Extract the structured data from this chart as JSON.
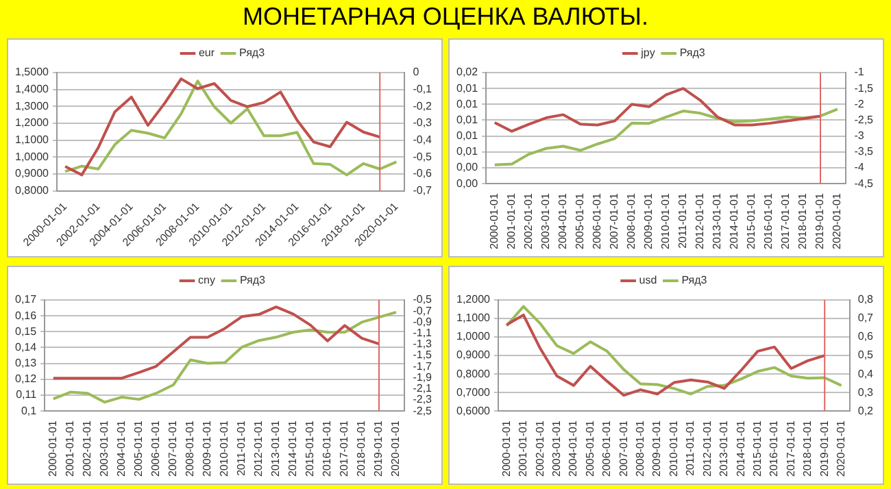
{
  "chart_data": [
    {
      "type": "line",
      "title": "МОНЕТАРНАЯ ОЦЕНКА ВАЛЮТЫ.",
      "legend": "top",
      "grid": "y",
      "marker": "none",
      "line_style": "solid",
      "x": [
        "2000-01-01",
        "2001-01-01",
        "2002-01-01",
        "2003-01-01",
        "2004-01-01",
        "2005-01-01",
        "2006-01-01",
        "2007-01-01",
        "2008-01-01",
        "2009-01-01",
        "2010-01-01",
        "2011-01-01",
        "2012-01-01",
        "2013-01-01",
        "2014-01-01",
        "2015-01-01",
        "2016-01-01",
        "2017-01-01",
        "2018-01-01",
        "2019-01-01",
        "2020-01-01"
      ],
      "xlim": [
        "1999-07-01",
        "2020-07-01"
      ],
      "xticks": [
        "2000-01-01",
        "2002-01-01",
        "2004-01-01",
        "2006-01-01",
        "2008-01-01",
        "2010-01-01",
        "2012-01-01",
        "2014-01-01",
        "2016-01-01",
        "2018-01-01",
        "2020-01-01"
      ],
      "ylim": [
        0.8,
        1.5
      ],
      "yticks": [
        {
          "value": 0.8,
          "label": "0,8000"
        },
        {
          "value": 0.9,
          "label": "0,9000"
        },
        {
          "value": 1.0,
          "label": "1,0000"
        },
        {
          "value": 1.1,
          "label": "1,1000"
        },
        {
          "value": 1.2,
          "label": "1,2000"
        },
        {
          "value": 1.3,
          "label": "1,3000"
        },
        {
          "value": 1.4,
          "label": "1,4000"
        },
        {
          "value": 1.5,
          "label": "1,5000"
        }
      ],
      "y2lim": [
        -0.7,
        0
      ],
      "y2ticks": [
        {
          "value": -0.7,
          "label": "-0,7"
        },
        {
          "value": -0.6,
          "label": "-0,6"
        },
        {
          "value": -0.5,
          "label": "-0,5"
        },
        {
          "value": -0.4,
          "label": "-0,4"
        },
        {
          "value": -0.3,
          "label": "-0,3"
        },
        {
          "value": -0.2,
          "label": "-0,2"
        },
        {
          "value": -0.1,
          "label": "-0,1"
        },
        0
      ],
      "ref_lines": [
        {
          "axis": "x",
          "value": "2019-01-01",
          "color": "#e06666"
        }
      ],
      "series": [
        {
          "name": "eur",
          "color": "#c0504d",
          "values": [
            0.944,
            0.894,
            1.056,
            1.268,
            1.355,
            1.188,
            1.318,
            1.463,
            1.405,
            1.435,
            1.335,
            1.298,
            1.323,
            1.385,
            1.218,
            1.089,
            1.061,
            1.206,
            1.148,
            1.118,
            null
          ]
        },
        {
          "name": "Ряд3",
          "color": "#9bbb59",
          "axis": "y2",
          "values": [
            -0.586,
            -0.554,
            -0.571,
            -0.426,
            -0.342,
            -0.359,
            -0.387,
            -0.244,
            -0.05,
            -0.202,
            -0.299,
            -0.214,
            -0.374,
            -0.374,
            -0.354,
            -0.539,
            -0.544,
            -0.606,
            -0.539,
            -0.571,
            -0.529
          ]
        }
      ]
    },
    {
      "type": "line",
      "legend": "top",
      "grid": "y",
      "marker": "none",
      "line_style": "solid",
      "x": [
        "2000-01-01",
        "2001-01-01",
        "2002-01-01",
        "2003-01-01",
        "2004-01-01",
        "2005-01-01",
        "2006-01-01",
        "2007-01-01",
        "2008-01-01",
        "2009-01-01",
        "2010-01-01",
        "2011-01-01",
        "2012-01-01",
        "2013-01-01",
        "2014-01-01",
        "2015-01-01",
        "2016-01-01",
        "2017-01-01",
        "2018-01-01",
        "2019-01-01",
        "2020-01-01"
      ],
      "xlim": [
        "1999-07-01",
        "2020-07-01"
      ],
      "xticks": [
        "2000-01-01",
        "2001-01-01",
        "2002-01-01",
        "2003-01-01",
        "2004-01-01",
        "2005-01-01",
        "2006-01-01",
        "2007-01-01",
        "2008-01-01",
        "2009-01-01",
        "2010-01-01",
        "2011-01-01",
        "2012-01-01",
        "2013-01-01",
        "2014-01-01",
        "2015-01-01",
        "2016-01-01",
        "2017-01-01",
        "2018-01-01",
        "2019-01-01",
        "2020-01-01"
      ],
      "ylim": [
        0.002,
        0.016
      ],
      "yticks": [
        {
          "value": 0.002,
          "label": "0,00"
        },
        {
          "value": 0.004,
          "label": "0,00"
        },
        {
          "value": 0.006,
          "label": "0,01"
        },
        {
          "value": 0.008,
          "label": "0,01"
        },
        {
          "value": 0.01,
          "label": "0,01"
        },
        {
          "value": 0.012,
          "label": "0,01"
        },
        {
          "value": 0.014,
          "label": "0,01"
        },
        {
          "value": 0.016,
          "label": "0,02"
        }
      ],
      "y2lim": [
        -4.5,
        -1
      ],
      "y2ticks": [
        {
          "value": -4.5,
          "label": "-4,5"
        },
        -4,
        {
          "value": -3.5,
          "label": "-3,5"
        },
        -3,
        {
          "value": -2.5,
          "label": "-2,5"
        },
        -2,
        {
          "value": -1.5,
          "label": "-1,5"
        },
        -1
      ],
      "ref_lines": [
        {
          "axis": "x",
          "value": "2019-01-01",
          "color": "#e06666"
        }
      ],
      "series": [
        {
          "name": "jpy",
          "color": "#c0504d",
          "values": [
            0.0097,
            0.0086,
            0.0095,
            0.0103,
            0.0107,
            0.0095,
            0.0094,
            0.0099,
            0.012,
            0.0117,
            0.0132,
            0.014,
            0.0125,
            0.0104,
            0.0094,
            0.0094,
            0.0096,
            0.0099,
            0.0102,
            0.0105,
            null
          ]
        },
        {
          "name": "Ряд3",
          "color": "#9bbb59",
          "axis": "y2",
          "values": [
            -3.91,
            -3.88,
            -3.57,
            -3.39,
            -3.32,
            -3.45,
            -3.25,
            -3.08,
            -2.59,
            -2.6,
            -2.4,
            -2.21,
            -2.28,
            -2.44,
            -2.55,
            -2.52,
            -2.47,
            -2.4,
            -2.43,
            -2.37,
            -2.15
          ]
        }
      ]
    },
    {
      "type": "line",
      "legend": "top",
      "grid": "y",
      "marker": "none",
      "line_style": "solid",
      "x": [
        "2000-01-01",
        "2001-01-01",
        "2002-01-01",
        "2003-01-01",
        "2004-01-01",
        "2005-01-01",
        "2006-01-01",
        "2007-01-01",
        "2008-01-01",
        "2009-01-01",
        "2010-01-01",
        "2011-01-01",
        "2012-01-01",
        "2013-01-01",
        "2014-01-01",
        "2015-01-01",
        "2016-01-01",
        "2017-01-01",
        "2018-01-01",
        "2019-01-01",
        "2020-01-01"
      ],
      "xlim": [
        "1999-07-01",
        "2020-07-01"
      ],
      "xticks": [
        "2000-01-01",
        "2001-01-01",
        "2002-01-01",
        "2003-01-01",
        "2004-01-01",
        "2005-01-01",
        "2006-01-01",
        "2007-01-01",
        "2008-01-01",
        "2009-01-01",
        "2010-01-01",
        "2011-01-01",
        "2012-01-01",
        "2013-01-01",
        "2014-01-01",
        "2015-01-01",
        "2016-01-01",
        "2017-01-01",
        "2018-01-01",
        "2019-01-01",
        "2020-01-01"
      ],
      "ylim": [
        0.1,
        0.17
      ],
      "yticks": [
        {
          "value": 0.1,
          "label": "0,1"
        },
        {
          "value": 0.11,
          "label": "0,11"
        },
        {
          "value": 0.12,
          "label": "0,12"
        },
        {
          "value": 0.13,
          "label": "0,13"
        },
        {
          "value": 0.14,
          "label": "0,14"
        },
        {
          "value": 0.15,
          "label": "0,15"
        },
        {
          "value": 0.16,
          "label": "0,16"
        },
        {
          "value": 0.17,
          "label": "0,17"
        }
      ],
      "y2lim": [
        -2.5,
        -0.5
      ],
      "y2ticks": [
        {
          "value": -2.5,
          "label": "-2,5"
        },
        {
          "value": -2.3,
          "label": "-2,3"
        },
        {
          "value": -2.1,
          "label": "-2,1"
        },
        {
          "value": -1.9,
          "label": "-1,9"
        },
        {
          "value": -1.7,
          "label": "-1,7"
        },
        {
          "value": -1.5,
          "label": "-1,5"
        },
        {
          "value": -1.3,
          "label": "-1,3"
        },
        {
          "value": -1.1,
          "label": "-1,1"
        },
        {
          "value": -0.9,
          "label": "-0,9"
        },
        {
          "value": -0.7,
          "label": "-0,7"
        },
        {
          "value": -0.5,
          "label": "-0,5"
        }
      ],
      "ref_lines": [
        {
          "axis": "x",
          "value": "2019-01-01",
          "color": "#e06666"
        }
      ],
      "series": [
        {
          "name": "cny",
          "color": "#c0504d",
          "values": [
            0.1207,
            0.1207,
            0.1207,
            0.1207,
            0.1207,
            0.1243,
            0.1282,
            0.1373,
            0.1465,
            0.1465,
            0.152,
            0.1595,
            0.1609,
            0.1656,
            0.1611,
            0.1542,
            0.1442,
            0.1539,
            0.1459,
            0.1423,
            null
          ]
        },
        {
          "name": "Ряд3",
          "color": "#9bbb59",
          "axis": "y2",
          "values": [
            -2.28,
            -2.16,
            -2.18,
            -2.34,
            -2.25,
            -2.29,
            -2.18,
            -2.03,
            -1.58,
            -1.64,
            -1.63,
            -1.35,
            -1.23,
            -1.17,
            -1.08,
            -1.04,
            -1.08,
            -1.08,
            -0.9,
            -0.81,
            -0.72
          ]
        }
      ]
    },
    {
      "type": "line",
      "legend": "top",
      "grid": "y",
      "marker": "none",
      "line_style": "solid",
      "x": [
        "2000-01-01",
        "2001-01-01",
        "2002-01-01",
        "2003-01-01",
        "2004-01-01",
        "2005-01-01",
        "2006-01-01",
        "2007-01-01",
        "2008-01-01",
        "2009-01-01",
        "2010-01-01",
        "2011-01-01",
        "2012-01-01",
        "2013-01-01",
        "2014-01-01",
        "2015-01-01",
        "2016-01-01",
        "2017-01-01",
        "2018-01-01",
        "2019-01-01",
        "2020-01-01"
      ],
      "xlim": [
        "1999-07-01",
        "2020-07-01"
      ],
      "xticks": [
        "2000-01-01",
        "2001-01-01",
        "2002-01-01",
        "2003-01-01",
        "2004-01-01",
        "2005-01-01",
        "2006-01-01",
        "2007-01-01",
        "2008-01-01",
        "2009-01-01",
        "2010-01-01",
        "2011-01-01",
        "2012-01-01",
        "2013-01-01",
        "2014-01-01",
        "2015-01-01",
        "2016-01-01",
        "2017-01-01",
        "2018-01-01",
        "2019-01-01",
        "2020-01-01"
      ],
      "ylim": [
        0.6,
        1.2
      ],
      "yticks": [
        {
          "value": 0.6,
          "label": "0,6000"
        },
        {
          "value": 0.7,
          "label": "0,7000"
        },
        {
          "value": 0.8,
          "label": "0,8000"
        },
        {
          "value": 0.9,
          "label": "0,9000"
        },
        {
          "value": 1.0,
          "label": "1,0000"
        },
        {
          "value": 1.1,
          "label": "1,1000"
        },
        {
          "value": 1.2,
          "label": "1,2000"
        }
      ],
      "y2lim": [
        0.2,
        0.8
      ],
      "y2ticks": [
        {
          "value": 0.2,
          "label": "0,2"
        },
        {
          "value": 0.3,
          "label": "0,3"
        },
        {
          "value": 0.4,
          "label": "0,4"
        },
        {
          "value": 0.5,
          "label": "0,5"
        },
        {
          "value": 0.6,
          "label": "0,6"
        },
        {
          "value": 0.7,
          "label": "0,7"
        },
        {
          "value": 0.8,
          "label": "0,8"
        }
      ],
      "ref_lines": [
        {
          "axis": "x",
          "value": "2019-01-01",
          "color": "#e06666"
        }
      ],
      "series": [
        {
          "name": "usd",
          "color": "#c0504d",
          "values": [
            1.066,
            1.119,
            0.939,
            0.789,
            0.738,
            0.842,
            0.761,
            0.685,
            0.715,
            0.692,
            0.754,
            0.768,
            0.757,
            0.722,
            0.819,
            0.923,
            0.946,
            0.83,
            0.872,
            0.9,
            null
          ]
        },
        {
          "name": "Ряд3",
          "color": "#9bbb59",
          "axis": "y2",
          "values": [
            0.661,
            0.765,
            0.673,
            0.553,
            0.511,
            0.574,
            0.523,
            0.424,
            0.347,
            0.343,
            0.322,
            0.292,
            0.333,
            0.338,
            0.373,
            0.414,
            0.435,
            0.389,
            0.377,
            0.38,
            0.338
          ]
        }
      ]
    }
  ]
}
